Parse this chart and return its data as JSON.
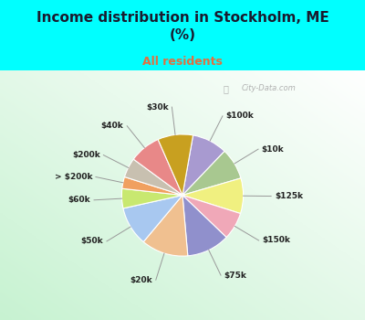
{
  "title": "Income distribution in Stockholm, ME\n(%)",
  "subtitle": "All residents",
  "title_color": "#1a1a2e",
  "subtitle_color": "#e07040",
  "background_top": "#00ffff",
  "watermark": "City-Data.com",
  "labels": [
    "$100k",
    "$10k",
    "$125k",
    "$150k",
    "$75k",
    "$20k",
    "$50k",
    "$60k",
    "> $200k",
    "$200k",
    "$40k",
    "$30k"
  ],
  "values": [
    9,
    8,
    9,
    7,
    11,
    12,
    10,
    5,
    3,
    5,
    8,
    9
  ],
  "colors": [
    "#a89ad0",
    "#a8c890",
    "#f0f080",
    "#f0a8b8",
    "#9090cc",
    "#f0c090",
    "#a8c8f0",
    "#c8e870",
    "#f0a060",
    "#c8c0b0",
    "#e88888",
    "#c8a020"
  ],
  "figsize": [
    4.0,
    3.5
  ],
  "dpi": 100,
  "startangle": 80
}
